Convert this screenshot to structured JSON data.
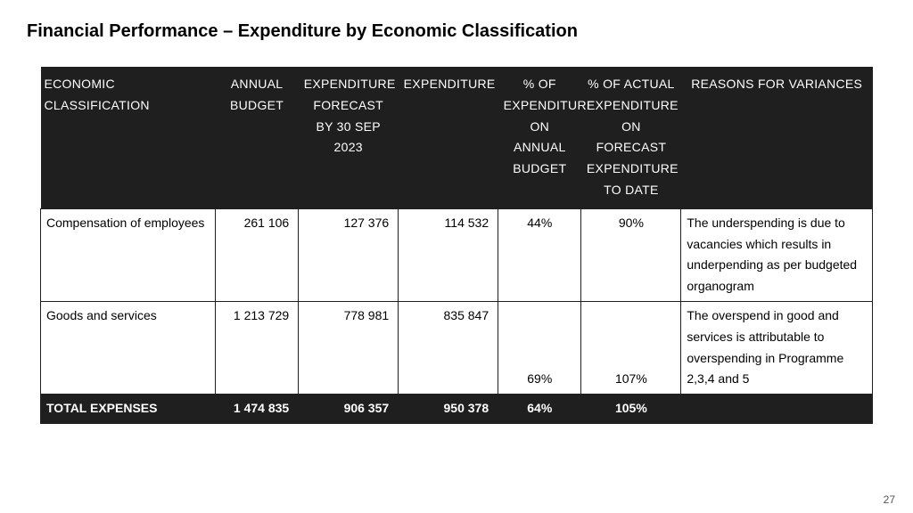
{
  "title": "Financial Performance – Expenditure by Economic Classification",
  "page_number": "27",
  "table": {
    "columns": [
      "ECONOMIC CLASSIFICATION",
      "ANNUAL BUDGET",
      "EXPENDITURE FORECAST BY 30 SEP 2023",
      "EXPENDITURE",
      "% OF EXPENDITURE ON ANNUAL BUDGET",
      "% OF ACTUAL EXPENDITURE ON FORECAST EXPENDITURE TO DATE",
      "REASONS FOR VARIANCES"
    ],
    "rows": [
      {
        "label": "Compensation of employees",
        "annual_budget": "261 106",
        "forecast": "127 376",
        "expenditure": "114 532",
        "pct_annual": "44%",
        "pct_forecast": "90%",
        "reason": " The underspending is due to vacancies which results in underpending as per budgeted organogram",
        "pct_valign_bottom": false
      },
      {
        "label": "Goods and services",
        "annual_budget": "1 213 729",
        "forecast": "778 981",
        "expenditure": "835 847",
        "pct_annual": "69%",
        "pct_forecast": "107%",
        "reason": " The overspend in good and services is attributable to overspending in Programme 2,3,4 and 5",
        "pct_valign_bottom": true
      }
    ],
    "total": {
      "label": "TOTAL EXPENSES",
      "annual_budget": "1 474 835",
      "forecast": "906 357",
      "expenditure": "950 378",
      "pct_annual": "64%",
      "pct_forecast": "105%",
      "reason": ""
    },
    "header_bg": "#1f1f1f",
    "header_fg": "#ffffff",
    "cell_border": "#1f1f1f",
    "body_fg": "#000000",
    "font_size_header": 14,
    "font_size_body": 14
  }
}
